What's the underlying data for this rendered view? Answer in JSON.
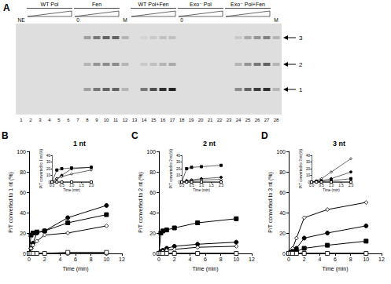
{
  "gel": {
    "panel": "A",
    "lanes": [
      1,
      2,
      3,
      4,
      5,
      6,
      7,
      8,
      9,
      10,
      11,
      12,
      13,
      14,
      15,
      16,
      17,
      18,
      19,
      20,
      21,
      22,
      23,
      24,
      25,
      26,
      27,
      28
    ],
    "groups": [
      {
        "label": "WT Pol",
        "first_lane": 2,
        "last_lane": 6
      },
      {
        "label": "Fen",
        "first_lane": 7,
        "last_lane": 11
      },
      {
        "label": "WT Pol+Fen",
        "first_lane": 13,
        "last_lane": 17
      },
      {
        "label": "Exo⁻ Pol",
        "first_lane": 18,
        "last_lane": 22
      },
      {
        "label": "Exo⁻ Pol+Fen",
        "first_lane": 23,
        "last_lane": 27
      }
    ],
    "top_labels": [
      {
        "lane": 1,
        "text": "NE"
      },
      {
        "lane": 7,
        "text": "0"
      },
      {
        "lane": 12,
        "text": "M"
      },
      {
        "lane": 18,
        "text": "0"
      },
      {
        "lane": 28,
        "text": "M"
      }
    ],
    "bands": [
      [
        0,
        0,
        0
      ],
      [
        0,
        0,
        0
      ],
      [
        0,
        0,
        0
      ],
      [
        0,
        0,
        0
      ],
      [
        0,
        0,
        0
      ],
      [
        0,
        0,
        0
      ],
      [
        0,
        0,
        0
      ],
      [
        0.3,
        0.2,
        0.3
      ],
      [
        0.5,
        0.35,
        0.5
      ],
      [
        0.6,
        0.4,
        0.6
      ],
      [
        0.6,
        0.4,
        0.6
      ],
      [
        0.2,
        0.2,
        0.2
      ],
      [
        0,
        0,
        0
      ],
      [
        0.5,
        0.1,
        0.05
      ],
      [
        0.7,
        0.15,
        0.1
      ],
      [
        0.85,
        0.2,
        0.15
      ],
      [
        0.9,
        0.25,
        0.15
      ],
      [
        0,
        0,
        0
      ],
      [
        0,
        0,
        0
      ],
      [
        0,
        0,
        0
      ],
      [
        0,
        0,
        0
      ],
      [
        0,
        0,
        0
      ],
      [
        0,
        0,
        0
      ],
      [
        0.4,
        0.2,
        0.1
      ],
      [
        0.6,
        0.35,
        0.25
      ],
      [
        0.8,
        0.5,
        0.35
      ],
      [
        0.85,
        0.6,
        0.45
      ],
      [
        0.2,
        0.2,
        0.2
      ]
    ],
    "arrows": [
      {
        "label": "3",
        "row": 3
      },
      {
        "label": "2",
        "row": 2
      },
      {
        "label": "1",
        "row": 1
      }
    ]
  },
  "chart_data": [
    {
      "type": "line",
      "title": "1 nt",
      "annotations": [
        "B"
      ],
      "xlabel": "Time (min)",
      "ylabel": "P/T converted to 1 nt (%)",
      "x": [
        0,
        0.25,
        0.5,
        1,
        2,
        5,
        10
      ],
      "xlim": [
        0,
        12
      ],
      "xticks": [
        0,
        2,
        4,
        6,
        8,
        10,
        12
      ],
      "ylim": [
        0,
        100
      ],
      "yticks": [
        0,
        20,
        40,
        60,
        80,
        100
      ],
      "grid": false,
      "series": [
        {
          "color": "#000000",
          "marker": "circle",
          "values": [
            0,
            5,
            10,
            20,
            22,
            35,
            47
          ]
        },
        {
          "color": "#000000",
          "marker": "square",
          "values": [
            0,
            18,
            20,
            21,
            22,
            30,
            38
          ]
        },
        {
          "color": "#000000",
          "marker": "open_diamond",
          "values": [
            0,
            5,
            8,
            12,
            18,
            20,
            27
          ]
        },
        {
          "color": "#000000",
          "marker": "open_circle",
          "values": [
            0,
            0,
            0,
            0,
            0,
            0,
            0
          ]
        },
        {
          "color": "#000000",
          "marker": "open_square",
          "values": [
            0,
            0,
            0,
            0,
            0,
            1,
            1
          ]
        }
      ]
    },
    {
      "type": "line",
      "xlabel": "Time (min)",
      "ylabel": "P/T converted to 1 nt (%)",
      "x": [
        0,
        0.25,
        0.5,
        1,
        2
      ],
      "xlim": [
        0,
        2
      ],
      "xticks": [
        {
          "value": 0,
          "label": "0.0"
        },
        {
          "value": 0.5,
          "label": "0.5"
        },
        {
          "value": 1,
          "label": "1.0"
        },
        {
          "value": 1.5,
          "label": "1.5"
        },
        {
          "value": 2,
          "label": "2.0"
        }
      ],
      "ylim": [
        0,
        40
      ],
      "yticks": [
        0,
        10,
        20,
        30,
        40
      ],
      "grid": false,
      "series": [
        {
          "color": "#000000",
          "marker": "circle",
          "values": [
            0,
            5,
            10,
            20,
            22
          ]
        },
        {
          "color": "#000000",
          "marker": "square",
          "values": [
            0,
            18,
            20,
            21,
            22
          ]
        },
        {
          "color": "#000000",
          "marker": "open_diamond",
          "values": [
            0,
            5,
            8,
            12,
            18
          ]
        },
        {
          "color": "#000000",
          "marker": "open_circle",
          "values": [
            0,
            0,
            0,
            0,
            0
          ]
        },
        {
          "color": "#000000",
          "marker": "open_square",
          "values": [
            0,
            0,
            0,
            0,
            0
          ]
        }
      ]
    },
    {
      "type": "line",
      "title": "2 nt",
      "annotations": [
        "C"
      ],
      "xlabel": "Time (min)",
      "ylabel": "P/T converted to 2 nt (%)",
      "x": [
        0,
        0.25,
        0.5,
        1,
        2,
        5,
        10
      ],
      "xlim": [
        0,
        12
      ],
      "xticks": [
        0,
        2,
        4,
        6,
        8,
        10,
        12
      ],
      "ylim": [
        0,
        100
      ],
      "yticks": [
        0,
        20,
        40,
        60,
        80,
        100
      ],
      "grid": false,
      "series": [
        {
          "color": "#000000",
          "marker": "square",
          "values": [
            0,
            20,
            22,
            23,
            25,
            30,
            34
          ]
        },
        {
          "color": "#000000",
          "marker": "circle",
          "values": [
            0,
            2,
            3,
            5,
            7,
            9,
            11
          ]
        },
        {
          "color": "#000000",
          "marker": "open_diamond",
          "values": [
            0,
            1,
            2,
            3,
            4,
            6,
            7
          ]
        },
        {
          "color": "#000000",
          "marker": "open_circle",
          "values": [
            0,
            0,
            0,
            0,
            0,
            0,
            0
          ]
        },
        {
          "color": "#000000",
          "marker": "open_square",
          "values": [
            0,
            0,
            0,
            0,
            0,
            0,
            0
          ]
        }
      ]
    },
    {
      "type": "line",
      "xlabel": "Time (min)",
      "ylabel": "P/T converted to 2 nt (%)",
      "x": [
        0,
        0.25,
        0.5,
        1,
        2
      ],
      "xlim": [
        0,
        2
      ],
      "xticks": [
        {
          "value": 0,
          "label": "0.0"
        },
        {
          "value": 0.5,
          "label": "0.5"
        },
        {
          "value": 1,
          "label": "1.0"
        },
        {
          "value": 1.5,
          "label": "1.5"
        },
        {
          "value": 2,
          "label": "2.0"
        }
      ],
      "ylim": [
        0,
        40
      ],
      "yticks": [
        0,
        10,
        20,
        30,
        40
      ],
      "grid": false,
      "series": [
        {
          "color": "#000000",
          "marker": "square",
          "values": [
            0,
            20,
            22,
            23,
            25
          ]
        },
        {
          "color": "#000000",
          "marker": "circle",
          "values": [
            0,
            2,
            3,
            5,
            7
          ]
        },
        {
          "color": "#000000",
          "marker": "open_diamond",
          "values": [
            0,
            1,
            2,
            3,
            4
          ]
        },
        {
          "color": "#000000",
          "marker": "open_circle",
          "values": [
            0,
            0,
            0,
            0,
            0
          ]
        },
        {
          "color": "#000000",
          "marker": "open_square",
          "values": [
            0,
            0,
            0,
            0,
            0
          ]
        }
      ]
    },
    {
      "type": "line",
      "title": "3 nt",
      "annotations": [
        "D"
      ],
      "xlabel": "Time (min)",
      "ylabel": "P/T converted to 3 nt (%)",
      "x": [
        0,
        0.25,
        0.5,
        1,
        2,
        5,
        10
      ],
      "xlim": [
        0,
        12
      ],
      "xticks": [
        0,
        2,
        4,
        6,
        8,
        10,
        12
      ],
      "ylim": [
        0,
        100
      ],
      "yticks": [
        0,
        20,
        40,
        60,
        80,
        100
      ],
      "grid": false,
      "series": [
        {
          "color": "#000000",
          "marker": "open_diamond",
          "values": [
            0,
            2,
            5,
            15,
            35,
            43,
            50
          ]
        },
        {
          "color": "#000000",
          "marker": "circle",
          "values": [
            0,
            1,
            2,
            5,
            15,
            20,
            27
          ]
        },
        {
          "color": "#000000",
          "marker": "square",
          "values": [
            0,
            1,
            1,
            2,
            5,
            8,
            12
          ]
        },
        {
          "color": "#000000",
          "marker": "open_circle",
          "values": [
            0,
            0,
            0,
            0,
            0,
            0,
            0
          ]
        },
        {
          "color": "#000000",
          "marker": "open_square",
          "values": [
            0,
            0,
            0,
            0,
            0,
            0,
            0
          ]
        }
      ]
    },
    {
      "type": "line",
      "xlabel": "Time (min)",
      "ylabel": "P/T converted to 3 nt (%)",
      "x": [
        0,
        0.25,
        0.5,
        1,
        2
      ],
      "xlim": [
        0,
        2
      ],
      "xticks": [
        {
          "value": 0,
          "label": "0.0"
        },
        {
          "value": 0.5,
          "label": "0.5"
        },
        {
          "value": 1,
          "label": "1.0"
        },
        {
          "value": 1.5,
          "label": "1.5"
        },
        {
          "value": 2,
          "label": "2.0"
        }
      ],
      "ylim": [
        0,
        40
      ],
      "yticks": [
        0,
        10,
        20,
        30,
        40
      ],
      "grid": false,
      "series": [
        {
          "color": "#000000",
          "marker": "open_diamond",
          "values": [
            0,
            2,
            5,
            15,
            35
          ]
        },
        {
          "color": "#000000",
          "marker": "circle",
          "values": [
            0,
            1,
            2,
            5,
            15
          ]
        },
        {
          "color": "#000000",
          "marker": "square",
          "values": [
            0,
            1,
            1,
            2,
            5
          ]
        },
        {
          "color": "#000000",
          "marker": "open_circle",
          "values": [
            0,
            0,
            0,
            0,
            0
          ]
        },
        {
          "color": "#000000",
          "marker": "open_square",
          "values": [
            0,
            0,
            0,
            0,
            0
          ]
        }
      ]
    }
  ]
}
